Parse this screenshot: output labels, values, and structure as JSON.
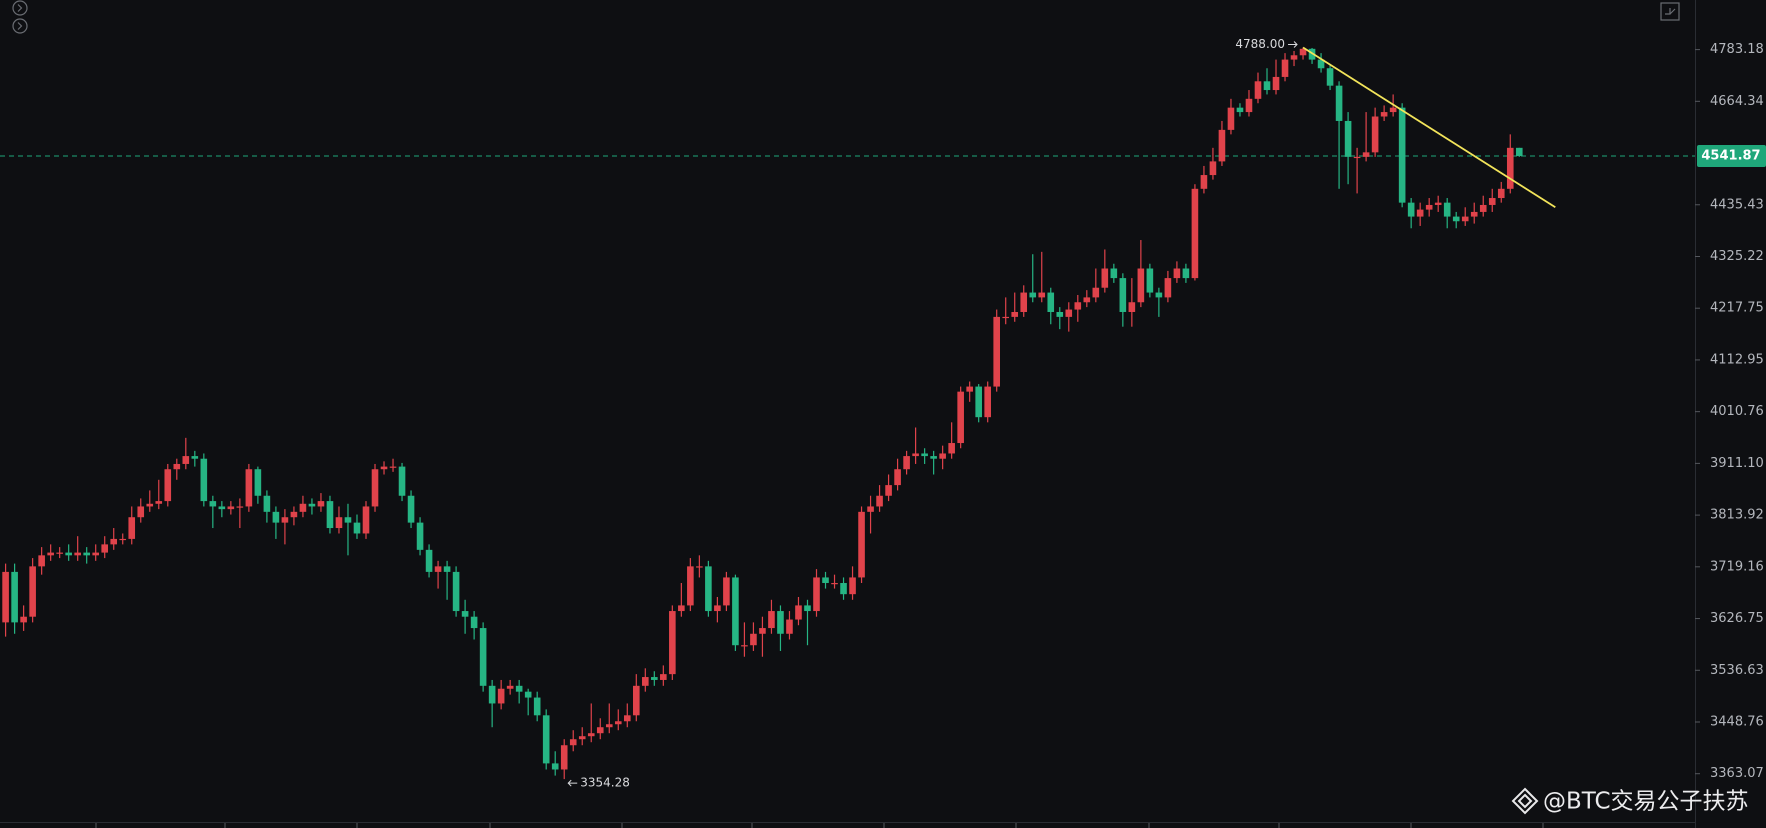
{
  "chart_data": {
    "type": "candlestick",
    "open": [
      3620,
      3710,
      3620,
      3630,
      3720,
      3740,
      3745,
      3745,
      3740,
      3745,
      3740,
      3745,
      3760,
      3770,
      3770,
      3810,
      3830,
      3835,
      3840,
      3900,
      3910,
      3925,
      3920,
      3840,
      3830,
      3825,
      3830,
      3830,
      3900,
      3850,
      3820,
      3800,
      3810,
      3820,
      3835,
      3830,
      3840,
      3790,
      3810,
      3800,
      3780,
      3830,
      3900,
      3905,
      3905,
      3850,
      3800,
      3750,
      3710,
      3720,
      3710,
      3640,
      3630,
      3610,
      3510,
      3480,
      3505,
      3510,
      3500,
      3490,
      3460,
      3380,
      3370,
      3410,
      3420,
      3425,
      3430,
      3440,
      3445,
      3450,
      3460,
      3510,
      3525,
      3520,
      3530,
      3640,
      3650,
      3720,
      3720,
      3640,
      3650,
      3700,
      3580,
      3580,
      3600,
      3610,
      3640,
      3600,
      3625,
      3650,
      3640,
      3700,
      3690,
      3690,
      3670,
      3700,
      3820,
      3830,
      3850,
      3870,
      3900,
      3925,
      3930,
      3925,
      3920,
      3930,
      3950,
      4050,
      4060,
      4000,
      4060,
      4200,
      4200,
      4210,
      4250,
      4240,
      4250,
      4210,
      4200,
      4215,
      4230,
      4240,
      4260,
      4300,
      4280,
      4210,
      4230,
      4300,
      4250,
      4240,
      4280,
      4300,
      4280,
      4470,
      4500,
      4530,
      4600,
      4650,
      4640,
      4670,
      4710,
      4690,
      4720,
      4760,
      4770,
      4785,
      4760,
      4740,
      4700,
      4620,
      4540,
      4540,
      4550,
      4630,
      4640,
      4650,
      4440,
      4410,
      4425,
      4435,
      4440,
      4410,
      4400,
      4410,
      4420,
      4435,
      4450,
      4470,
      4560
    ],
    "high": [
      3725,
      3725,
      3650,
      3735,
      3755,
      3760,
      3755,
      3760,
      3775,
      3755,
      3760,
      3775,
      3790,
      3780,
      3830,
      3845,
      3860,
      3880,
      3910,
      3920,
      3960,
      3935,
      3930,
      3850,
      3840,
      3840,
      3845,
      3910,
      3905,
      3860,
      3830,
      3825,
      3830,
      3850,
      3845,
      3855,
      3850,
      3830,
      3835,
      3815,
      3840,
      3910,
      3915,
      3920,
      3912,
      3860,
      3810,
      3760,
      3730,
      3730,
      3720,
      3660,
      3640,
      3620,
      3520,
      3520,
      3520,
      3520,
      3505,
      3500,
      3470,
      3400,
      3420,
      3435,
      3440,
      3480,
      3455,
      3480,
      3470,
      3480,
      3530,
      3540,
      3535,
      3545,
      3650,
      3690,
      3735,
      3740,
      3730,
      3665,
      3710,
      3705,
      3620,
      3620,
      3630,
      3660,
      3650,
      3640,
      3665,
      3660,
      3715,
      3710,
      3705,
      3700,
      3720,
      3830,
      3850,
      3870,
      3890,
      3920,
      3935,
      3980,
      3940,
      3935,
      3945,
      3990,
      4060,
      4070,
      4065,
      4070,
      4215,
      4240,
      4250,
      4265,
      4330,
      4335,
      4260,
      4220,
      4230,
      4245,
      4255,
      4300,
      4340,
      4310,
      4290,
      4280,
      4360,
      4310,
      4260,
      4295,
      4315,
      4310,
      4480,
      4520,
      4560,
      4620,
      4670,
      4660,
      4690,
      4730,
      4740,
      4760,
      4775,
      4780,
      4788,
      4787,
      4775,
      4750,
      4710,
      4640,
      4560,
      4640,
      4650,
      4655,
      4680,
      4660,
      4450,
      4440,
      4450,
      4455,
      4450,
      4420,
      4430,
      4440,
      4455,
      4470,
      4485,
      4590,
      4560
    ],
    "low": [
      3595,
      3600,
      3605,
      3620,
      3705,
      3730,
      3735,
      3730,
      3730,
      3725,
      3730,
      3735,
      3750,
      3760,
      3760,
      3800,
      3820,
      3825,
      3830,
      3880,
      3900,
      3905,
      3830,
      3790,
      3810,
      3815,
      3790,
      3820,
      3835,
      3800,
      3770,
      3760,
      3795,
      3810,
      3815,
      3820,
      3780,
      3780,
      3740,
      3770,
      3770,
      3820,
      3890,
      3895,
      3840,
      3790,
      3740,
      3700,
      3680,
      3660,
      3630,
      3600,
      3590,
      3500,
      3440,
      3470,
      3495,
      3480,
      3460,
      3450,
      3370,
      3360,
      3354.28,
      3400,
      3410,
      3415,
      3420,
      3430,
      3435,
      3440,
      3450,
      3500,
      3510,
      3510,
      3520,
      3630,
      3640,
      3700,
      3630,
      3620,
      3640,
      3570,
      3560,
      3570,
      3560,
      3600,
      3570,
      3590,
      3615,
      3580,
      3630,
      3680,
      3680,
      3660,
      3660,
      3690,
      3780,
      3820,
      3840,
      3860,
      3890,
      3910,
      3910,
      3890,
      3900,
      3920,
      3940,
      4030,
      3990,
      3990,
      4050,
      4185,
      4190,
      4200,
      4230,
      4230,
      4185,
      4175,
      4170,
      4190,
      4220,
      4230,
      4250,
      4270,
      4180,
      4180,
      4220,
      4240,
      4200,
      4230,
      4270,
      4270,
      4275,
      4460,
      4490,
      4520,
      4590,
      4630,
      4630,
      4660,
      4680,
      4680,
      4710,
      4745,
      4760,
      4750,
      4730,
      4690,
      4470,
      4480,
      4460,
      4530,
      4540,
      4620,
      4630,
      4430,
      4385,
      4390,
      4410,
      4420,
      4385,
      4385,
      4390,
      4395,
      4410,
      4420,
      4440,
      4460,
      4540
    ],
    "close": [
      3710,
      3620,
      3630,
      3720,
      3740,
      3745,
      3745,
      3740,
      3745,
      3740,
      3745,
      3760,
      3770,
      3770,
      3810,
      3830,
      3835,
      3840,
      3900,
      3910,
      3925,
      3920,
      3840,
      3830,
      3825,
      3830,
      3830,
      3900,
      3850,
      3820,
      3800,
      3810,
      3820,
      3835,
      3830,
      3840,
      3790,
      3810,
      3800,
      3780,
      3830,
      3900,
      3905,
      3905,
      3850,
      3800,
      3750,
      3710,
      3720,
      3710,
      3640,
      3630,
      3610,
      3510,
      3480,
      3505,
      3510,
      3500,
      3490,
      3460,
      3380,
      3370,
      3410,
      3420,
      3425,
      3430,
      3440,
      3445,
      3450,
      3460,
      3510,
      3525,
      3520,
      3530,
      3640,
      3650,
      3720,
      3720,
      3640,
      3650,
      3700,
      3580,
      3580,
      3600,
      3610,
      3640,
      3600,
      3625,
      3650,
      3640,
      3700,
      3690,
      3690,
      3670,
      3700,
      3820,
      3830,
      3850,
      3870,
      3900,
      3925,
      3930,
      3925,
      3920,
      3930,
      3950,
      4050,
      4060,
      4000,
      4060,
      4200,
      4200,
      4210,
      4250,
      4240,
      4250,
      4210,
      4200,
      4215,
      4230,
      4240,
      4260,
      4300,
      4280,
      4210,
      4230,
      4300,
      4250,
      4240,
      4280,
      4300,
      4280,
      4470,
      4500,
      4530,
      4600,
      4650,
      4640,
      4670,
      4710,
      4690,
      4720,
      4760,
      4770,
      4785,
      4760,
      4740,
      4700,
      4620,
      4540,
      4540,
      4550,
      4630,
      4640,
      4650,
      4440,
      4410,
      4425,
      4435,
      4440,
      4410,
      4400,
      4410,
      4420,
      4435,
      4450,
      4470,
      4560,
      4541.87
    ],
    "up_color": "#e0434b",
    "down_color": "#26b584",
    "log_scale": true,
    "ylim": [
      3285,
      4900
    ],
    "yticks": [
      4783.18,
      4664.34,
      4435.43,
      4325.22,
      4217.75,
      4112.95,
      4010.76,
      {
        "value": 3911.1,
        "label": "3911.10"
      },
      3813.92,
      3719.16,
      3626.75,
      3536.63,
      3448.76,
      3363.07
    ],
    "current_price": 4541.87,
    "current_price_color": "#1fa77a",
    "high_label": {
      "value": 4788,
      "label": "4788.00"
    },
    "low_label": 3354.28,
    "trendline": {
      "x": [
        144,
        172
      ],
      "values": [
        4788,
        4430
      ],
      "color": "#f2e45a"
    }
  },
  "watermark": "@BTC交易公子扶苏"
}
